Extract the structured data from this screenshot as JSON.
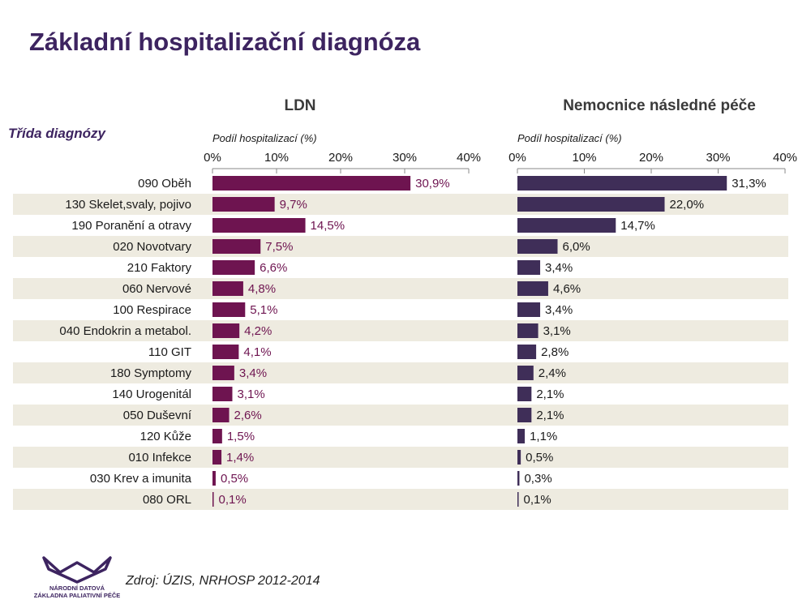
{
  "title": "Základní hospitalizační diagnóza",
  "row_header": "Třída diagnózy",
  "source": "Zdroj: ÚZIS, NRHOSP 2012-2014",
  "logo": {
    "line1": "NÁRODNÍ DATOVÁ",
    "line2": "ZÁKLADNA PALIATIVNÍ PÉČE"
  },
  "colors": {
    "title": "#3d2460",
    "ldn_bar": "#6e1450",
    "nnp_bar": "#3f2e58",
    "stripe": "#eeebe0"
  },
  "chart_data": [
    {
      "type": "bar",
      "orientation": "horizontal",
      "title": "LDN",
      "xlabel": "Podíl hospitalizací (%)",
      "xlim": [
        0,
        40
      ],
      "ticks": [
        "0%",
        "10%",
        "20%",
        "30%",
        "40%"
      ],
      "categories": [
        "090 Oběh",
        "130 Skelet,svaly, pojivo",
        "190 Poranění a otravy",
        "020 Novotvary",
        "210 Faktory",
        "060 Nervové",
        "100 Respirace",
        "040 Endokrin a metabol.",
        "110 GIT",
        "180 Symptomy",
        "140 Urogenitál",
        "050 Duševní",
        "120 Kůže",
        "010 Infekce",
        "030 Krev a imunita",
        "080 ORL"
      ],
      "values": [
        30.9,
        9.7,
        14.5,
        7.5,
        6.6,
        4.8,
        5.1,
        4.2,
        4.1,
        3.4,
        3.1,
        2.6,
        1.5,
        1.4,
        0.5,
        0.1
      ],
      "labels": [
        "30,9%",
        "9,7%",
        "14,5%",
        "7,5%",
        "6,6%",
        "4,8%",
        "5,1%",
        "4,2%",
        "4,1%",
        "3,4%",
        "3,1%",
        "2,6%",
        "1,5%",
        "1,4%",
        "0,5%",
        "0,1%"
      ]
    },
    {
      "type": "bar",
      "orientation": "horizontal",
      "title": "Nemocnice následné péče",
      "xlabel": "Podíl hospitalizací (%)",
      "xlim": [
        0,
        40
      ],
      "ticks": [
        "0%",
        "10%",
        "20%",
        "30%",
        "40%"
      ],
      "categories": [
        "090 Oběh",
        "130 Skelet,svaly, pojivo",
        "190 Poranění a otravy",
        "020 Novotvary",
        "210 Faktory",
        "060 Nervové",
        "100 Respirace",
        "040 Endokrin a metabol.",
        "110 GIT",
        "180 Symptomy",
        "140 Urogenitál",
        "050 Duševní",
        "120 Kůže",
        "010 Infekce",
        "030 Krev a imunita",
        "080 ORL"
      ],
      "values": [
        31.3,
        22.0,
        14.7,
        6.0,
        3.4,
        4.6,
        3.4,
        3.1,
        2.8,
        2.4,
        2.1,
        2.1,
        1.1,
        0.5,
        0.3,
        0.1
      ],
      "labels": [
        "31,3%",
        "22,0%",
        "14,7%",
        "6,0%",
        "3,4%",
        "4,6%",
        "3,4%",
        "3,1%",
        "2,8%",
        "2,4%",
        "2,1%",
        "2,1%",
        "1,1%",
        "0,5%",
        "0,3%",
        "0,1%"
      ]
    }
  ]
}
